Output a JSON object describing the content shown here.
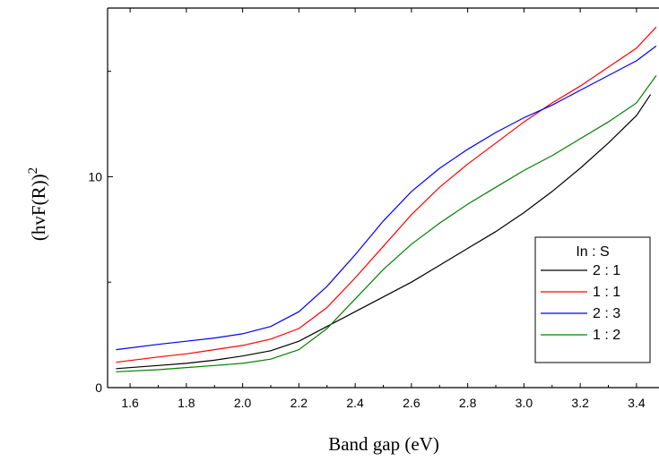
{
  "chart_data": {
    "type": "line",
    "xlabel": "Band gap (eV)",
    "ylabel_base": "(hvF(R))",
    "ylabel_sup": "2",
    "xlim": [
      1.52,
      3.48
    ],
    "ylim": [
      0,
      18
    ],
    "x_ticks": [
      "1.6",
      "1.8",
      "2.0",
      "2.2",
      "2.4",
      "2.6",
      "2.8",
      "3.0",
      "3.2",
      "3.4"
    ],
    "x_tick_values": [
      1.6,
      1.8,
      2.0,
      2.2,
      2.4,
      2.6,
      2.8,
      3.0,
      3.2,
      3.4
    ],
    "y_ticks": [
      "0",
      "10"
    ],
    "y_tick_values": [
      0,
      10
    ],
    "legend": {
      "title": "In : S",
      "placement": "lower-right"
    },
    "series": [
      {
        "name": "2 : 1",
        "color": "#000000",
        "x": [
          1.55,
          1.7,
          1.8,
          1.9,
          2.0,
          2.1,
          2.2,
          2.3,
          2.4,
          2.5,
          2.6,
          2.7,
          2.8,
          2.9,
          3.0,
          3.1,
          3.2,
          3.3,
          3.4,
          3.45
        ],
        "values": [
          0.9,
          1.05,
          1.15,
          1.3,
          1.5,
          1.75,
          2.2,
          2.9,
          3.6,
          4.3,
          5.0,
          5.8,
          6.6,
          7.4,
          8.3,
          9.3,
          10.4,
          11.6,
          12.9,
          13.9
        ]
      },
      {
        "name": "1 : 1",
        "color": "#ff0000",
        "x": [
          1.55,
          1.7,
          1.8,
          1.9,
          2.0,
          2.1,
          2.2,
          2.3,
          2.4,
          2.5,
          2.6,
          2.7,
          2.8,
          2.9,
          3.0,
          3.1,
          3.2,
          3.3,
          3.4,
          3.47
        ],
        "values": [
          1.2,
          1.45,
          1.6,
          1.8,
          2.0,
          2.3,
          2.8,
          3.8,
          5.2,
          6.7,
          8.2,
          9.5,
          10.6,
          11.6,
          12.6,
          13.5,
          14.3,
          15.2,
          16.1,
          17.1
        ]
      },
      {
        "name": "2 : 3",
        "color": "#0000ff",
        "x": [
          1.55,
          1.7,
          1.8,
          1.9,
          2.0,
          2.1,
          2.2,
          2.3,
          2.4,
          2.5,
          2.6,
          2.7,
          2.8,
          2.9,
          3.0,
          3.1,
          3.2,
          3.3,
          3.4,
          3.47
        ],
        "values": [
          1.8,
          2.05,
          2.2,
          2.35,
          2.55,
          2.9,
          3.6,
          4.8,
          6.3,
          7.9,
          9.3,
          10.4,
          11.3,
          12.1,
          12.8,
          13.4,
          14.1,
          14.8,
          15.5,
          16.2
        ]
      },
      {
        "name": "1 : 2",
        "color": "#008000",
        "x": [
          1.55,
          1.7,
          1.8,
          1.9,
          2.0,
          2.1,
          2.2,
          2.3,
          2.4,
          2.5,
          2.6,
          2.7,
          2.8,
          2.9,
          3.0,
          3.1,
          3.2,
          3.3,
          3.4,
          3.47
        ],
        "values": [
          0.75,
          0.85,
          0.95,
          1.05,
          1.15,
          1.35,
          1.8,
          2.8,
          4.2,
          5.6,
          6.8,
          7.8,
          8.7,
          9.5,
          10.3,
          11.0,
          11.8,
          12.6,
          13.5,
          14.8
        ]
      }
    ]
  }
}
